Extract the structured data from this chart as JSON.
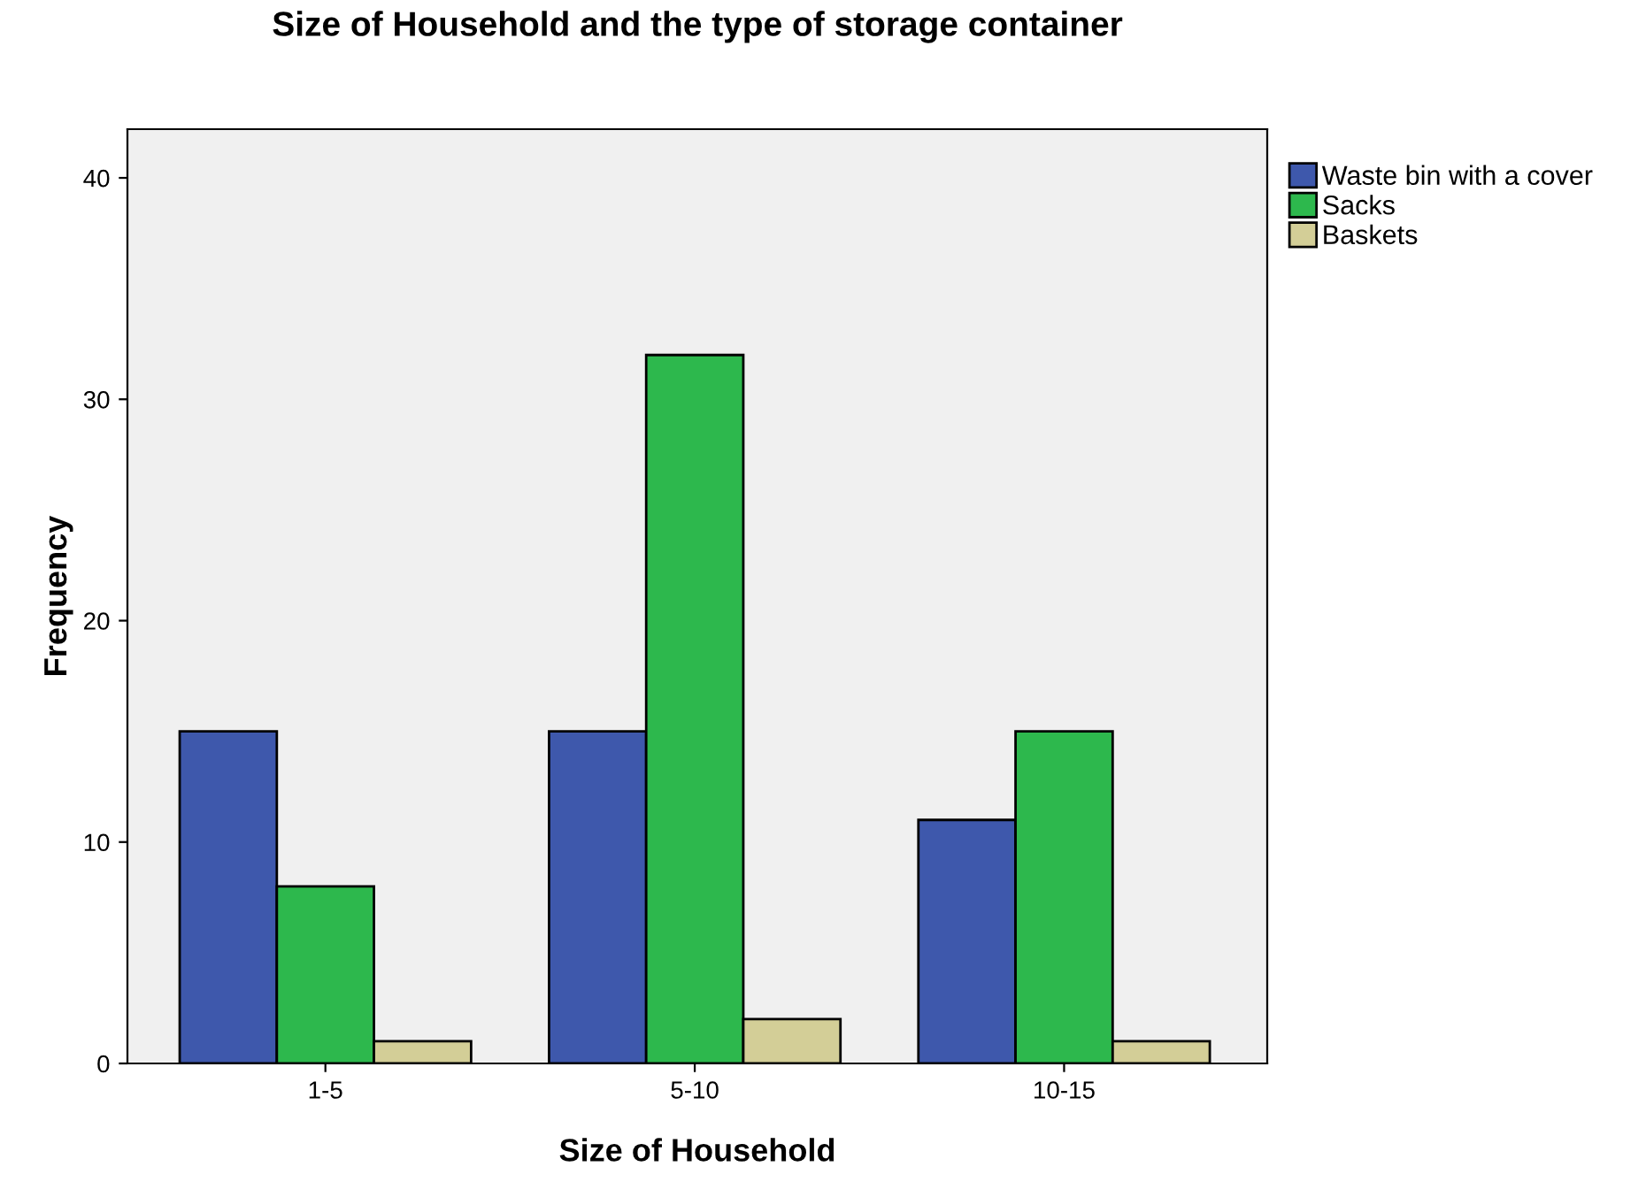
{
  "chart_data": {
    "type": "bar",
    "title": "Size of Household and the type of storage container",
    "xlabel": "Size of Household",
    "ylabel": "Frequency",
    "categories": [
      "1-5",
      "5-10",
      "10-15"
    ],
    "series": [
      {
        "name": "Waste bin with a cover",
        "color": "#3e58ac",
        "values": [
          15,
          15,
          11
        ]
      },
      {
        "name": "Sacks",
        "color": "#2db84d",
        "values": [
          8,
          32,
          15
        ]
      },
      {
        "name": "Baskets",
        "color": "#d3ce97",
        "values": [
          1,
          2,
          1
        ]
      }
    ],
    "ylim": [
      0,
      42.2
    ],
    "yticks": [
      0,
      10,
      20,
      30,
      40
    ],
    "grid": false,
    "legend": "top right"
  }
}
